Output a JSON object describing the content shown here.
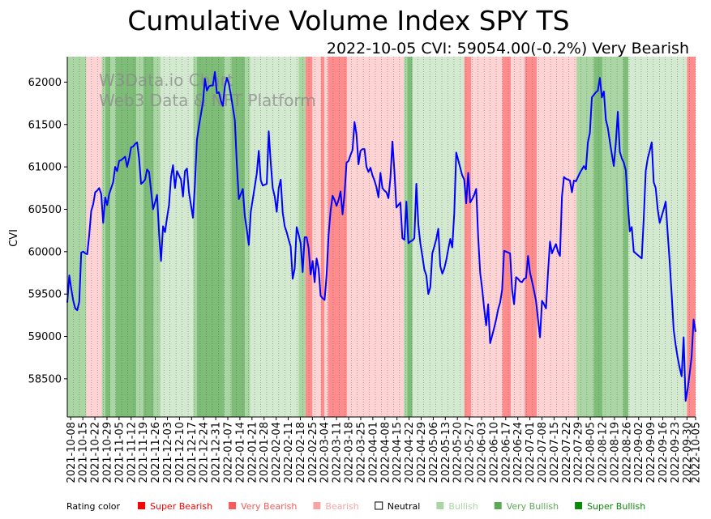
{
  "chart_data": {
    "type": "line",
    "title": "Cumulative Volume Index SPY TS",
    "subtitle": "2022-10-05 CVI: 59054.00(-0.2%) Very Bearish",
    "ylabel": "CVI",
    "xlabel": "",
    "ylim": [
      58050,
      62300
    ],
    "yticks": [
      58500,
      59000,
      59500,
      60000,
      60500,
      61000,
      61500,
      62000
    ],
    "watermark": [
      "W3Data.io Chart",
      "Web3 Data & NFT Platform"
    ],
    "series": [
      {
        "name": "CVI",
        "color": "#0000ff",
        "values": [
          59400,
          59720,
          59560,
          59420,
          59330,
          59310,
          59410,
          59990,
          60000,
          59980,
          59970,
          60200,
          60480,
          60560,
          60700,
          60720,
          60750,
          60680,
          60340,
          60640,
          60550,
          60680,
          60750,
          60820,
          61000,
          60950,
          61070,
          61080,
          61100,
          61120,
          61000,
          61100,
          61230,
          61240,
          61270,
          61290,
          61100,
          60800,
          60820,
          60850,
          60970,
          60940,
          60720,
          60500,
          60580,
          60670,
          60220,
          59890,
          60300,
          60230,
          60400,
          60550,
          60880,
          61020,
          60750,
          60950,
          60900,
          60850,
          60650,
          60950,
          60980,
          60700,
          60550,
          60400,
          60800,
          61320,
          61480,
          61620,
          61760,
          62040,
          61900,
          61950,
          61960,
          61960,
          62120,
          61870,
          61880,
          61780,
          61720,
          61950,
          62050,
          61980,
          61850,
          61700,
          61550,
          61030,
          60620,
          60680,
          60740,
          60420,
          60260,
          60080,
          60470,
          60620,
          60770,
          60920,
          61190,
          60840,
          60780,
          60790,
          60800,
          61420,
          61050,
          60750,
          60650,
          60470,
          60750,
          60850,
          60460,
          60300,
          60230,
          60140,
          60060,
          59680,
          59800,
          60290,
          60200,
          60100,
          59760,
          60170,
          60170,
          60040,
          59730,
          59890,
          59640,
          59920,
          59800,
          59480,
          59450,
          59430,
          59720,
          60200,
          60480,
          60660,
          60610,
          60540,
          60610,
          60710,
          60440,
          60680,
          61050,
          61070,
          61140,
          61200,
          61530,
          61380,
          61030,
          61190,
          61210,
          61210,
          61000,
          60940,
          60990,
          60900,
          60840,
          60760,
          60640,
          60930,
          60750,
          60720,
          60700,
          60630,
          60870,
          61300,
          60950,
          60520,
          60550,
          60580,
          60160,
          60140,
          60590,
          60100,
          60120,
          60130,
          60160,
          60800,
          60320,
          60100,
          59950,
          59790,
          59720,
          59500,
          59580,
          59980,
          60060,
          60150,
          60270,
          59830,
          59740,
          59800,
          59900,
          60030,
          60150,
          60050,
          60450,
          61170,
          61080,
          60990,
          60900,
          60850,
          60570,
          60930,
          60580,
          60620,
          60670,
          60740,
          60170,
          59750,
          59560,
          59330,
          59130,
          59380,
          58920,
          59010,
          59100,
          59200,
          59320,
          59400,
          59550,
          60010,
          60000,
          59990,
          59980,
          59550,
          59380,
          59700,
          59680,
          59650,
          59640,
          59680,
          59690,
          59950,
          59750,
          59650,
          59540,
          59420,
          59200,
          58990,
          59420,
          59380,
          59330,
          59750,
          60120,
          59980,
          60040,
          60090,
          60000,
          59950,
          60650,
          60880,
          60860,
          60850,
          60840,
          60700,
          60840,
          60830,
          60880,
          60930,
          60970,
          61010,
          60970,
          61290,
          61400,
          61820,
          61850,
          61880,
          61900,
          62050,
          61820,
          61890,
          61560,
          61460,
          61300,
          61150,
          61010,
          61280,
          61650,
          61180,
          61100,
          61050,
          60960,
          60580,
          60240,
          60290,
          60000,
          59980,
          59960,
          59940,
          59920,
          60390,
          60950,
          61100,
          61190,
          61290,
          60820,
          60750,
          60500,
          60340,
          60420,
          60500,
          60590,
          60220,
          59880,
          59500,
          59080,
          58900,
          58750,
          58630,
          58530,
          58990,
          58240,
          58380,
          58560,
          58760,
          59200,
          59054
        ]
      }
    ],
    "xtick_labels": [
      "2021-10-08",
      "2021-10-15",
      "2021-10-22",
      "2021-10-29",
      "2021-11-05",
      "2021-11-12",
      "2021-11-19",
      "2021-11-26",
      "2021-12-03",
      "2021-12-10",
      "2021-12-17",
      "2021-12-24",
      "2021-12-31",
      "2022-01-07",
      "2022-01-14",
      "2022-01-21",
      "2022-01-28",
      "2022-02-04",
      "2022-02-11",
      "2022-02-18",
      "2022-02-25",
      "2022-03-04",
      "2022-03-11",
      "2022-03-18",
      "2022-03-25",
      "2022-04-01",
      "2022-04-08",
      "2022-04-15",
      "2022-04-22",
      "2022-04-29",
      "2022-05-06",
      "2022-05-13",
      "2022-05-20",
      "2022-05-27",
      "2022-06-03",
      "2022-06-10",
      "2022-06-17",
      "2022-06-24",
      "2022-07-01",
      "2022-07-08",
      "2022-07-15",
      "2022-07-22",
      "2022-07-29",
      "2022-08-05",
      "2022-08-12",
      "2022-08-19",
      "2022-08-26",
      "2022-09-02",
      "2022-09-09",
      "2022-09-16",
      "2022-09-23",
      "2022-09-30",
      "2022-10-05"
    ],
    "x_date_range": [
      "2021-10-06",
      "2022-10-05"
    ],
    "rating_spans": [
      {
        "from": "2021-10-06",
        "to": "2021-10-17",
        "rating": "bullish"
      },
      {
        "from": "2021-10-17",
        "to": "2021-10-26",
        "rating": "bearish"
      },
      {
        "from": "2021-10-26",
        "to": "2021-10-28",
        "rating": "bullish"
      },
      {
        "from": "2021-10-28",
        "to": "2021-10-31",
        "rating": "very_bullish"
      },
      {
        "from": "2021-10-31",
        "to": "2021-11-03",
        "rating": "bullish"
      },
      {
        "from": "2021-11-03",
        "to": "2021-11-15",
        "rating": "very_bullish"
      },
      {
        "from": "2021-11-15",
        "to": "2021-11-19",
        "rating": "bullish"
      },
      {
        "from": "2021-11-19",
        "to": "2021-11-25",
        "rating": "very_bullish"
      },
      {
        "from": "2021-11-25",
        "to": "2021-11-29",
        "rating": "bullish"
      },
      {
        "from": "2021-11-29",
        "to": "2021-12-18",
        "rating": "neutral_bull"
      },
      {
        "from": "2021-12-18",
        "to": "2021-12-20",
        "rating": "bullish"
      },
      {
        "from": "2021-12-20",
        "to": "2022-01-05",
        "rating": "very_bullish"
      },
      {
        "from": "2022-01-05",
        "to": "2022-01-09",
        "rating": "bullish"
      },
      {
        "from": "2022-01-09",
        "to": "2022-01-17",
        "rating": "very_bullish"
      },
      {
        "from": "2022-01-17",
        "to": "2022-01-20",
        "rating": "bullish"
      },
      {
        "from": "2022-01-20",
        "to": "2022-02-17",
        "rating": "neutral_bull"
      },
      {
        "from": "2022-02-17",
        "to": "2022-02-21",
        "rating": "bullish"
      },
      {
        "from": "2022-02-21",
        "to": "2022-02-25",
        "rating": "very_bearish"
      },
      {
        "from": "2022-02-25",
        "to": "2022-03-02",
        "rating": "bearish"
      },
      {
        "from": "2022-03-02",
        "to": "2022-03-04",
        "rating": "very_bearish"
      },
      {
        "from": "2022-03-04",
        "to": "2022-03-06",
        "rating": "bearish"
      },
      {
        "from": "2022-03-06",
        "to": "2022-03-17",
        "rating": "very_bearish"
      },
      {
        "from": "2022-03-17",
        "to": "2022-04-19",
        "rating": "bearish"
      },
      {
        "from": "2022-04-19",
        "to": "2022-04-21",
        "rating": "bullish"
      },
      {
        "from": "2022-04-21",
        "to": "2022-04-24",
        "rating": "very_bullish"
      },
      {
        "from": "2022-04-24",
        "to": "2022-05-24",
        "rating": "neutral_bull"
      },
      {
        "from": "2022-05-24",
        "to": "2022-05-28",
        "rating": "very_bearish"
      },
      {
        "from": "2022-05-28",
        "to": "2022-06-15",
        "rating": "bearish"
      },
      {
        "from": "2022-06-15",
        "to": "2022-06-20",
        "rating": "very_bearish"
      },
      {
        "from": "2022-06-20",
        "to": "2022-06-28",
        "rating": "bearish"
      },
      {
        "from": "2022-06-28",
        "to": "2022-07-05",
        "rating": "very_bearish"
      },
      {
        "from": "2022-07-05",
        "to": "2022-07-28",
        "rating": "bearish"
      },
      {
        "from": "2022-07-28",
        "to": "2022-08-07",
        "rating": "bullish"
      },
      {
        "from": "2022-08-07",
        "to": "2022-08-12",
        "rating": "very_bullish"
      },
      {
        "from": "2022-08-12",
        "to": "2022-08-24",
        "rating": "bullish"
      },
      {
        "from": "2022-08-24",
        "to": "2022-08-27",
        "rating": "very_bullish"
      },
      {
        "from": "2022-08-27",
        "to": "2022-09-30",
        "rating": "neutral_bull"
      },
      {
        "from": "2022-09-30",
        "to": "2022-10-05",
        "rating": "very_bearish"
      }
    ],
    "legend": {
      "title": "Rating color",
      "items": [
        {
          "label": "Super Bearish",
          "swatch": "#ff0000",
          "text_color": "#ff0000",
          "outline": false
        },
        {
          "label": "Very Bearish",
          "swatch": "#f65a5a",
          "text_color": "#f65a5a",
          "outline": false
        },
        {
          "label": "Bearish",
          "swatch": "#f7a4a4",
          "text_color": "#f7a4a4",
          "outline": false
        },
        {
          "label": "Neutral",
          "swatch": "#ffffff",
          "text_color": "#000000",
          "outline": true
        },
        {
          "label": "Bullish",
          "swatch": "#a9d6a2",
          "text_color": "#a9d6a2",
          "outline": false
        },
        {
          "label": "Very Bullish",
          "swatch": "#5aaa55",
          "text_color": "#5aaa55",
          "outline": false
        },
        {
          "label": "Super Bullish",
          "swatch": "#088a08",
          "text_color": "#088a08",
          "outline": false
        }
      ]
    },
    "band_colors": {
      "neutral_bull": "#d3ead0",
      "bullish": "#a9d6a2",
      "very_bullish": "#7ebd78",
      "bearish": "#fdd3d3",
      "very_bearish": "#ff8c8c"
    },
    "line_color": "#0000ff"
  }
}
